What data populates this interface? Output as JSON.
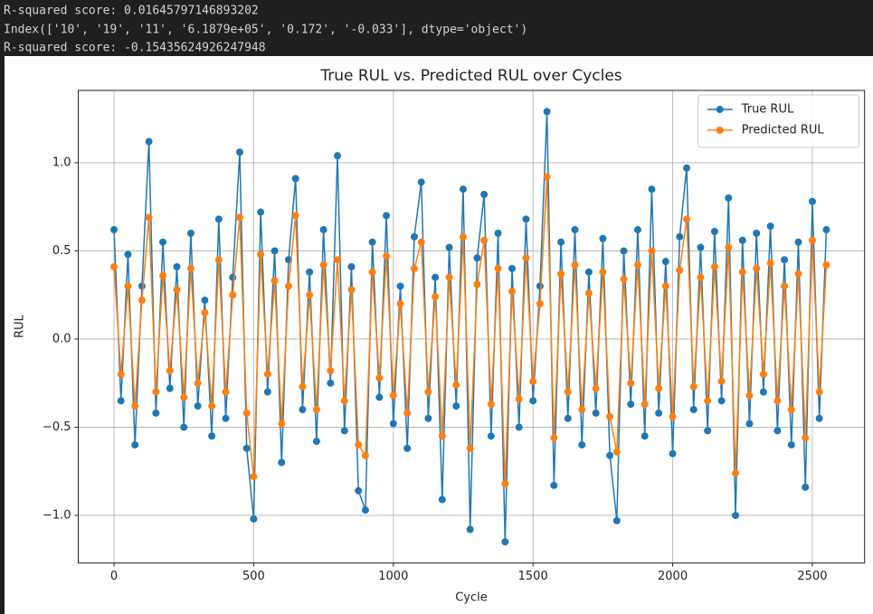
{
  "output_lines": [
    "R-squared score: 0.01645797146893202",
    "Index(['10', '19', '11', '6.1879e+05', '0.172', '-0.033'], dtype='object')",
    "R-squared score: -0.15435624926247948"
  ],
  "chart_data": {
    "type": "line",
    "title": "True RUL vs. Predicted RUL over Cycles",
    "x_label": "Cycle",
    "y_label": "RUL",
    "x": [
      0,
      25,
      50,
      75,
      100,
      125,
      150,
      175,
      200,
      225,
      250,
      275,
      300,
      325,
      350,
      375,
      400,
      425,
      450,
      475,
      500,
      525,
      550,
      575,
      600,
      625,
      650,
      675,
      700,
      725,
      750,
      775,
      800,
      825,
      850,
      875,
      900,
      925,
      950,
      975,
      1000,
      1025,
      1050,
      1075,
      1100,
      1125,
      1150,
      1175,
      1200,
      1225,
      1250,
      1275,
      1300,
      1325,
      1350,
      1375,
      1400,
      1425,
      1450,
      1475,
      1500,
      1525,
      1550,
      1575,
      1600,
      1625,
      1650,
      1675,
      1700,
      1725,
      1750,
      1775,
      1800,
      1825,
      1850,
      1875,
      1900,
      1925,
      1950,
      1975,
      2000,
      2025,
      2050,
      2075,
      2100,
      2125,
      2150,
      2175,
      2200,
      2225,
      2250,
      2275,
      2300,
      2325,
      2350,
      2375,
      2400,
      2425,
      2450,
      2475,
      2500,
      2525,
      2550
    ],
    "series": [
      {
        "name": "True RUL",
        "color": "#1f77b4",
        "values": [
          0.62,
          -0.35,
          0.48,
          -0.6,
          0.3,
          1.12,
          -0.42,
          0.55,
          -0.28,
          0.41,
          -0.5,
          0.6,
          -0.38,
          0.22,
          -0.55,
          0.68,
          -0.45,
          0.35,
          1.06,
          -0.62,
          -1.02,
          0.72,
          -0.3,
          0.5,
          -0.7,
          0.45,
          0.91,
          -0.4,
          0.38,
          -0.58,
          0.62,
          -0.25,
          1.04,
          -0.52,
          0.41,
          -0.86,
          -0.97,
          0.55,
          -0.33,
          0.7,
          -0.48,
          0.3,
          -0.62,
          0.58,
          0.89,
          -0.45,
          0.35,
          -0.91,
          0.52,
          -0.38,
          0.85,
          -1.08,
          0.46,
          0.82,
          -0.55,
          0.6,
          -1.15,
          0.4,
          -0.5,
          0.68,
          -0.35,
          0.3,
          1.29,
          -0.83,
          0.55,
          -0.45,
          0.62,
          -0.6,
          0.38,
          -0.42,
          0.57,
          -0.66,
          -1.03,
          0.5,
          -0.37,
          0.62,
          -0.55,
          0.85,
          -0.42,
          0.44,
          -0.65,
          0.58,
          0.97,
          -0.4,
          0.52,
          -0.52,
          0.61,
          -0.35,
          0.8,
          -1.0,
          0.56,
          -0.48,
          0.6,
          -0.3,
          0.64,
          -0.52,
          0.45,
          -0.6,
          0.55,
          -0.84,
          0.78,
          -0.45,
          0.62
        ]
      },
      {
        "name": "Predicted RUL",
        "color": "#ff7f0e",
        "values": [
          0.41,
          -0.2,
          0.3,
          -0.38,
          0.22,
          0.69,
          -0.3,
          0.36,
          -0.18,
          0.28,
          -0.33,
          0.4,
          -0.25,
          0.15,
          -0.38,
          0.45,
          -0.3,
          0.25,
          0.69,
          -0.42,
          -0.78,
          0.48,
          -0.2,
          0.33,
          -0.48,
          0.3,
          0.7,
          -0.27,
          0.25,
          -0.4,
          0.42,
          -0.18,
          0.45,
          -0.35,
          0.28,
          -0.6,
          -0.66,
          0.38,
          -0.22,
          0.47,
          -0.32,
          0.2,
          -0.42,
          0.4,
          0.55,
          -0.3,
          0.24,
          -0.55,
          0.35,
          -0.26,
          0.58,
          -0.62,
          0.31,
          0.56,
          -0.37,
          0.4,
          -0.82,
          0.27,
          -0.34,
          0.46,
          -0.24,
          0.2,
          0.92,
          -0.56,
          0.37,
          -0.3,
          0.42,
          -0.4,
          0.26,
          -0.28,
          0.38,
          -0.44,
          -0.64,
          0.34,
          -0.25,
          0.42,
          -0.37,
          0.5,
          -0.28,
          0.3,
          -0.44,
          0.39,
          0.68,
          -0.27,
          0.35,
          -0.35,
          0.41,
          -0.24,
          0.52,
          -0.76,
          0.38,
          -0.32,
          0.4,
          -0.2,
          0.43,
          -0.35,
          0.3,
          -0.4,
          0.37,
          -0.56,
          0.56,
          -0.3,
          0.42
        ]
      }
    ],
    "xlim": [
      -128,
      2687
    ],
    "xticks": [
      0,
      500,
      1000,
      1500,
      2000,
      2500
    ],
    "ylim": [
      -1.27,
      1.41
    ],
    "yticks": [
      {
        "value": -1.0,
        "label": "−1.0"
      },
      {
        "value": -0.5,
        "label": "−0.5"
      },
      {
        "value": 0.0,
        "label": "0.0"
      },
      {
        "value": 0.5,
        "label": "0.5"
      },
      {
        "value": 1.0,
        "label": "1.0"
      }
    ],
    "grid": true,
    "legend": "upper right"
  }
}
